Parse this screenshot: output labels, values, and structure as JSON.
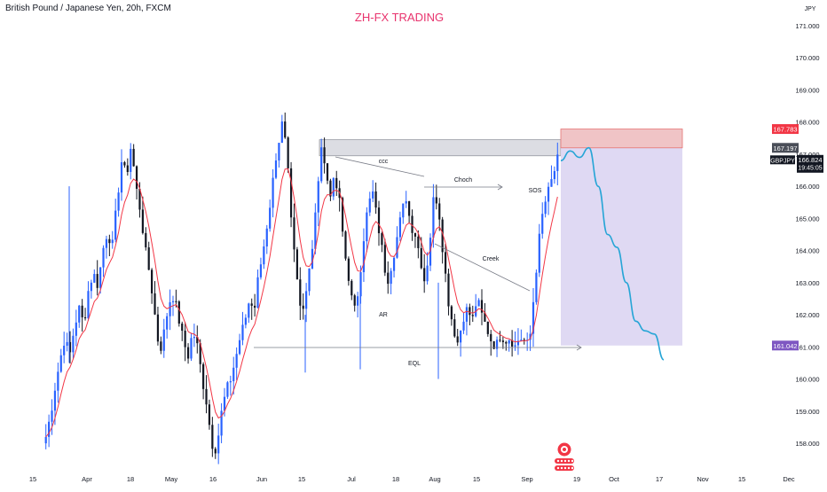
{
  "header": {
    "symbol_title": "British Pound / Japanese Yen, 20h, FXCM",
    "brand": "ZH-FX TRADING"
  },
  "axis": {
    "currency": "JPY"
  },
  "chart_data": {
    "type": "candlestick",
    "title": "British Pound / Japanese Yen, 20h, FXCM",
    "ylabel": "JPY",
    "ylim": [
      157.35,
      171.5
    ],
    "y_ticks": [
      "158.000",
      "159.000",
      "160.000",
      "161.000",
      "162.000",
      "163.000",
      "164.000",
      "165.000",
      "166.000",
      "167.000",
      "168.000",
      "169.000",
      "170.000",
      "171.000"
    ],
    "x_ticks": [
      "15",
      "Apr",
      "18",
      "May",
      "16",
      "Jun",
      "15",
      "Jul",
      "18",
      "Aug",
      "15",
      "Sep",
      "19",
      "Oct",
      "17",
      "Nov",
      "15",
      "Dec"
    ],
    "close_path": [
      158.2,
      158.9,
      159.8,
      160.6,
      161.3,
      160.7,
      161.6,
      162.2,
      161.7,
      162.8,
      163.3,
      162.9,
      164.0,
      164.6,
      164.1,
      165.5,
      166.8,
      166.3,
      167.3,
      166.0,
      165.2,
      164.0,
      163.2,
      162.0,
      160.8,
      161.5,
      162.4,
      162.6,
      161.9,
      161.2,
      160.7,
      161.5,
      161.0,
      160.0,
      159.2,
      158.0,
      157.8,
      158.9,
      159.6,
      160.0,
      160.6,
      161.3,
      161.8,
      162.5,
      162.2,
      163.4,
      164.2,
      164.8,
      166.2,
      167.0,
      168.1,
      166.8,
      164.7,
      163.2,
      162.0,
      162.7,
      163.8,
      165.2,
      167.4,
      166.5,
      165.8,
      166.2,
      165.5,
      164.0,
      163.1,
      162.0,
      162.8,
      164.3,
      165.4,
      165.8,
      164.9,
      164.0,
      163.0,
      163.6,
      164.3,
      165.1,
      165.7,
      164.8,
      164.5,
      163.8,
      163.0,
      164.2,
      165.9,
      165.2,
      163.7,
      162.4,
      161.6,
      161.1,
      161.9,
      162.2,
      161.8,
      162.5,
      162.0,
      161.6,
      161.2,
      161.0,
      161.4,
      161.2,
      161.3,
      161.0,
      161.3,
      161.2,
      161.0,
      162.6,
      164.2,
      165.3,
      165.8,
      166.3,
      166.824
    ],
    "price_labels": [
      {
        "value": "167.783",
        "kind": "target-top"
      },
      {
        "value": "167.197",
        "kind": "zone-level"
      },
      {
        "value": "166.824",
        "kind": "last",
        "symbol": "GBPJPY",
        "countdown": "19:45:05"
      },
      {
        "value": "161.042",
        "kind": "target"
      }
    ],
    "annotations": [
      "ccc",
      "Choch",
      "SOS",
      "Creek",
      "AR",
      "EQL"
    ],
    "zones": {
      "supply_rect": [
        166.95,
        167.45
      ],
      "entry_rect": [
        167.197,
        167.783
      ],
      "target_rect": [
        161.042,
        167.197
      ]
    },
    "projection": [
      166.8,
      167.1,
      166.9,
      167.2,
      166.0,
      164.5,
      164.1,
      163.0,
      161.8,
      161.5,
      161.4,
      160.6
    ],
    "grid": false,
    "legend": "none"
  },
  "colors": {
    "up": "#2962ff",
    "down": "#131722",
    "ma": "#f23645",
    "projection": "#26a5d6",
    "target": "#7e57c2",
    "entry": "#f23645",
    "brand": "#e8336d"
  }
}
